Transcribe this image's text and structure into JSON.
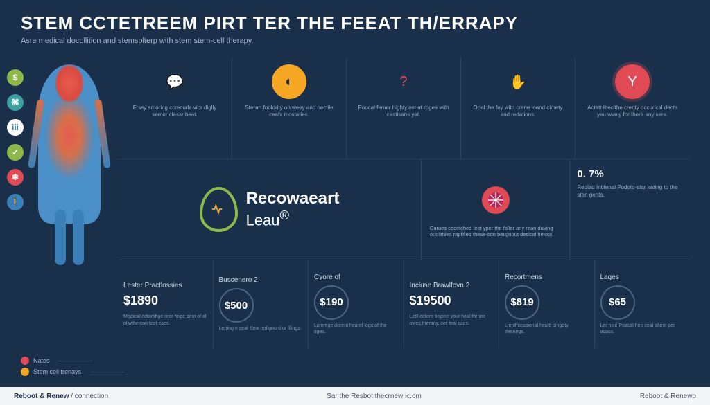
{
  "colors": {
    "background": "#1a2f4a",
    "divider": "#2d4563",
    "text_primary": "#ffffff",
    "text_muted": "#9ab0c8",
    "footer_bg": "#f2f4f6",
    "green": "#8fb84a",
    "teal": "#3aa0a0",
    "red": "#e04a55",
    "orange": "#f5a623",
    "magenta": "#b0285a",
    "blue": "#3a7fb8"
  },
  "header": {
    "title": "STEM CCTETREEM PIRT TER THE FEEAT TH/ERRAPY",
    "subtitle": "Asre medical docollition and stemsplterp with stem stem-cell therapy."
  },
  "side_icons": [
    {
      "bg": "#8fb84a",
      "glyph": "$"
    },
    {
      "bg": "#3aa0a0",
      "glyph": "⌘"
    },
    {
      "bg": "#ffffff",
      "glyph": "iii",
      "fg": "#3a7fb8"
    },
    {
      "bg": "#8fb84a",
      "glyph": "✓"
    },
    {
      "bg": "#e04a55",
      "glyph": "❄"
    },
    {
      "bg": "#3a7fb8",
      "glyph": "🚶"
    }
  ],
  "row1": [
    {
      "icon_bg": "transparent",
      "icon_fg": "#3a7fb8",
      "glyph": "💬",
      "text": "Frssy smoring ccrecurle vior diglly semor classr beat."
    },
    {
      "icon_bg": "#f5a623",
      "icon_fg": "#1a2f4a",
      "glyph": "◐",
      "text": "Sterart foolority on weey and nectile ceafs mostaties."
    },
    {
      "icon_bg": "transparent",
      "icon_fg": "#e04a55",
      "glyph": "?",
      "text": "Poucal femer highty ost at roges with castisans yet."
    },
    {
      "icon_bg": "transparent",
      "icon_fg": "#f5a623",
      "glyph": "✋",
      "text": "Opal the fey with crane loand cimety and redations."
    },
    {
      "icon_bg": "#e04a55",
      "icon_fg": "#ffffff",
      "glyph": "Y",
      "text": "Actatt Ibecithe crenty occurical dects yeu wvely for there any sers."
    }
  ],
  "brand": {
    "drop_color": "#8fb84a",
    "inner_color": "#f5a623",
    "name_line1": "Recowaeart",
    "name_line2": "Leau",
    "sup": "®"
  },
  "callout": {
    "icon_bg": "#e04a55",
    "ring": "#b0285a",
    "text": "Carues cecetched tect yper the faller any rean duving ouolithies raplified these-son betignout desical hetool."
  },
  "stat": {
    "value": "0. 7%",
    "text": "Reolad Intitenal Podoto-star kating to the sten gents."
  },
  "pricing": [
    {
      "label": "Lester Practlossies",
      "amount": "$1890",
      "style": "plain",
      "desc": "Medical edtartihge reor hege sent of al oliwthe con teet caes."
    },
    {
      "label": "Buscenero 2",
      "amount": "$500",
      "style": "circle",
      "desc": "Lerting e ceal New redignord or illings."
    },
    {
      "label": "Cyore of",
      "amount": "$190",
      "style": "circle",
      "desc": "Lomrtige dorent hearel logs of the tiges."
    },
    {
      "label": "Incluse Brawlfovn 2",
      "amount": "$19500",
      "style": "plain",
      "desc": "Letll cafore begine your heal for tec owes therany, cer feal caes."
    },
    {
      "label": "Recortmens",
      "amount": "$819",
      "style": "circle",
      "desc": "Lieniffceasional heultt dingoty thetungs."
    },
    {
      "label": "Lages",
      "amount": "$65",
      "style": "circle",
      "desc": "Ler hise Poacal heo ceal afient per adacs."
    }
  ],
  "legend": {
    "items": [
      {
        "color": "#e04a55",
        "label": "Nates"
      },
      {
        "color": "#f5a623",
        "label": "Stem cell trenays"
      }
    ]
  },
  "footer": {
    "left_bold": "Reboot & Renew",
    "left_rest": " / connection",
    "right": "Sar the Resbot thecrnew ic.om",
    "corner": "Reboot & Renewp"
  }
}
